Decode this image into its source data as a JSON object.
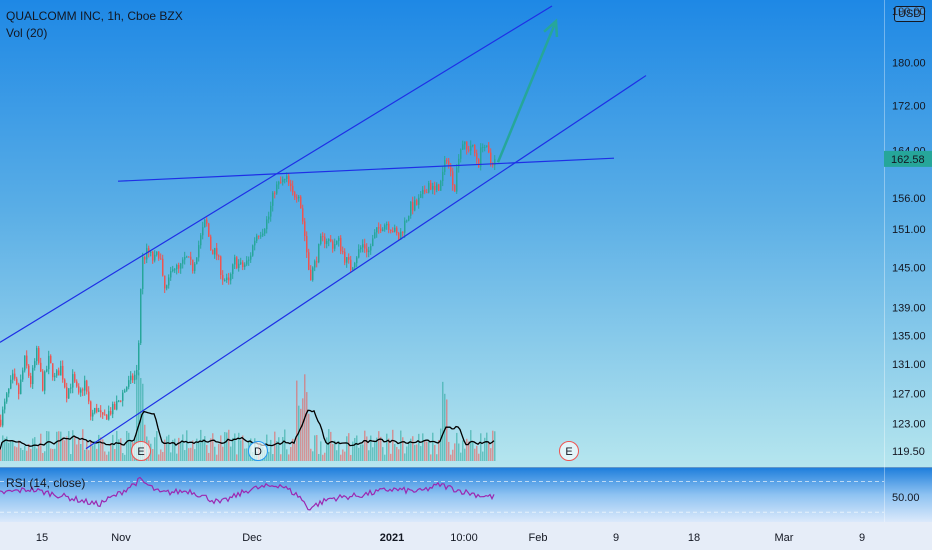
{
  "header": {
    "symbol_line": "QUALCOMM INC, 1h, Cboe BZX",
    "vol_label": "Vol (20)",
    "currency": "USD"
  },
  "rsi": {
    "label": "RSI (14, close)"
  },
  "colors": {
    "up": "#26a69a",
    "down": "#ef5350",
    "trendline": "#1e2fe6",
    "arrow": "#26a69a",
    "rsi_line": "#9c27b0",
    "price_tag": "#26a69a",
    "event_e": "#ef5350",
    "event_d": "#2196f3"
  },
  "chart_data": {
    "type": "candlestick",
    "title": "QUALCOMM INC, 1h, Cboe BZX",
    "price_axis": {
      "ticks": [
        119.5,
        123.0,
        127.0,
        131.0,
        135.0,
        139.0,
        145.0,
        151.0,
        156.0,
        164.0,
        172.0,
        180.0,
        190.0
      ],
      "tick_labels": [
        "119.50",
        "123.00",
        "127.00",
        "131.00",
        "135.00",
        "139.00",
        "145.00",
        "151.00",
        "156.00",
        "164.00",
        "172.00",
        "180.00",
        "190.00"
      ],
      "ylim": [
        118.5,
        191.0
      ],
      "scale": "log"
    },
    "time_axis": {
      "labels": [
        "15",
        "Nov",
        "Dec",
        "2021",
        "10:00",
        "Feb",
        "9",
        "18",
        "Mar",
        "9"
      ]
    },
    "current_price": {
      "value": 162.58,
      "label": "162.58"
    },
    "price_path": [
      {
        "t": 0,
        "p": 123.5
      },
      {
        "t": 6,
        "p": 126.5
      },
      {
        "t": 12,
        "p": 129.0
      },
      {
        "t": 18,
        "p": 127.0
      },
      {
        "t": 24,
        "p": 131.5
      },
      {
        "t": 30,
        "p": 128.5
      },
      {
        "t": 36,
        "p": 132.5
      },
      {
        "t": 42,
        "p": 128.0
      },
      {
        "t": 48,
        "p": 131.5
      },
      {
        "t": 54,
        "p": 129.0
      },
      {
        "t": 60,
        "p": 130.5
      },
      {
        "t": 66,
        "p": 127.0
      },
      {
        "t": 72,
        "p": 129.0
      },
      {
        "t": 78,
        "p": 126.5
      },
      {
        "t": 84,
        "p": 128.5
      },
      {
        "t": 90,
        "p": 124.0
      },
      {
        "t": 96,
        "p": 125.0
      },
      {
        "t": 102,
        "p": 123.5
      },
      {
        "t": 108,
        "p": 124.5
      },
      {
        "t": 114,
        "p": 125.0
      },
      {
        "t": 120,
        "p": 126.5
      },
      {
        "t": 126,
        "p": 128.0
      },
      {
        "t": 132,
        "p": 129.0
      },
      {
        "t": 137,
        "p": 130.0
      },
      {
        "t": 141,
        "p": 146.0
      },
      {
        "t": 147,
        "p": 147.5
      },
      {
        "t": 153,
        "p": 146.0
      },
      {
        "t": 159,
        "p": 147.5
      },
      {
        "t": 163,
        "p": 141.5
      },
      {
        "t": 167,
        "p": 142.0
      },
      {
        "t": 172,
        "p": 145.5
      },
      {
        "t": 178,
        "p": 144.5
      },
      {
        "t": 185,
        "p": 146.5
      },
      {
        "t": 192,
        "p": 145.0
      },
      {
        "t": 198,
        "p": 148.5
      },
      {
        "t": 205,
        "p": 152.5
      },
      {
        "t": 210,
        "p": 148.0
      },
      {
        "t": 216,
        "p": 147.0
      },
      {
        "t": 222,
        "p": 143.5
      },
      {
        "t": 228,
        "p": 142.5
      },
      {
        "t": 234,
        "p": 146.0
      },
      {
        "t": 241,
        "p": 145.0
      },
      {
        "t": 248,
        "p": 146.0
      },
      {
        "t": 255,
        "p": 150.0
      },
      {
        "t": 262,
        "p": 151.0
      },
      {
        "t": 268,
        "p": 153.0
      },
      {
        "t": 274,
        "p": 157.5
      },
      {
        "t": 280,
        "p": 158.5
      },
      {
        "t": 286,
        "p": 159.0
      },
      {
        "t": 292,
        "p": 156.5
      },
      {
        "t": 298,
        "p": 157.0
      },
      {
        "t": 304,
        "p": 150.0
      },
      {
        "t": 309,
        "p": 143.5
      },
      {
        "t": 314,
        "p": 145.5
      },
      {
        "t": 320,
        "p": 149.0
      },
      {
        "t": 326,
        "p": 149.5
      },
      {
        "t": 332,
        "p": 148.5
      },
      {
        "t": 338,
        "p": 149.0
      },
      {
        "t": 344,
        "p": 146.5
      },
      {
        "t": 350,
        "p": 145.0
      },
      {
        "t": 356,
        "p": 147.0
      },
      {
        "t": 362,
        "p": 148.5
      },
      {
        "t": 368,
        "p": 147.5
      },
      {
        "t": 374,
        "p": 150.0
      },
      {
        "t": 380,
        "p": 151.5
      },
      {
        "t": 386,
        "p": 152.0
      },
      {
        "t": 392,
        "p": 151.0
      },
      {
        "t": 398,
        "p": 149.5
      },
      {
        "t": 404,
        "p": 152.0
      },
      {
        "t": 410,
        "p": 154.5
      },
      {
        "t": 416,
        "p": 155.0
      },
      {
        "t": 422,
        "p": 156.5
      },
      {
        "t": 428,
        "p": 158.5
      },
      {
        "t": 434,
        "p": 157.0
      },
      {
        "t": 440,
        "p": 158.5
      },
      {
        "t": 446,
        "p": 163.0
      },
      {
        "t": 450,
        "p": 160.0
      },
      {
        "t": 454,
        "p": 158.0
      },
      {
        "t": 458,
        "p": 163.5
      },
      {
        "t": 462,
        "p": 165.5
      },
      {
        "t": 466,
        "p": 164.0
      },
      {
        "t": 470,
        "p": 165.0
      },
      {
        "t": 474,
        "p": 163.5
      },
      {
        "t": 478,
        "p": 162.0
      },
      {
        "t": 482,
        "p": 165.5
      },
      {
        "t": 486,
        "p": 164.0
      },
      {
        "t": 490,
        "p": 162.0
      },
      {
        "t": 494,
        "p": 162.58
      }
    ],
    "trendlines": [
      {
        "name": "upper-channel",
        "from": {
          "t": 0,
          "p": 134.0
        },
        "to": {
          "t": 552,
          "p": 191.0
        }
      },
      {
        "name": "lower-channel",
        "from": {
          "t": 86,
          "p": 119.8
        },
        "to": {
          "t": 646,
          "p": 177.5
        }
      },
      {
        "name": "horizontal-resistance",
        "from": {
          "t": 118,
          "p": 158.8
        },
        "to": {
          "t": 614,
          "p": 162.7
        }
      }
    ],
    "projection_arrow": {
      "from": {
        "t": 498,
        "p": 162.0
      },
      "to": {
        "t": 556,
        "p": 188.0
      }
    },
    "events": [
      {
        "label": "E",
        "t": 141,
        "kind": "earnings"
      },
      {
        "label": "D",
        "t": 258,
        "kind": "dividend"
      },
      {
        "label": "E",
        "t": 569,
        "kind": "earnings"
      }
    ],
    "rsi": {
      "tick_labels": [
        "50.00"
      ],
      "ylim": [
        20,
        85
      ],
      "overbought": 70,
      "path": [
        {
          "t": 0,
          "v": 55
        },
        {
          "t": 30,
          "v": 60
        },
        {
          "t": 60,
          "v": 52
        },
        {
          "t": 98,
          "v": 40
        },
        {
          "t": 120,
          "v": 55
        },
        {
          "t": 140,
          "v": 72
        },
        {
          "t": 160,
          "v": 55
        },
        {
          "t": 190,
          "v": 58
        },
        {
          "t": 220,
          "v": 42
        },
        {
          "t": 250,
          "v": 60
        },
        {
          "t": 280,
          "v": 66
        },
        {
          "t": 300,
          "v": 50
        },
        {
          "t": 308,
          "v": 35
        },
        {
          "t": 330,
          "v": 48
        },
        {
          "t": 360,
          "v": 52
        },
        {
          "t": 390,
          "v": 60
        },
        {
          "t": 420,
          "v": 57
        },
        {
          "t": 440,
          "v": 66
        },
        {
          "t": 460,
          "v": 58
        },
        {
          "t": 480,
          "v": 52
        },
        {
          "t": 494,
          "v": 50
        }
      ]
    }
  }
}
